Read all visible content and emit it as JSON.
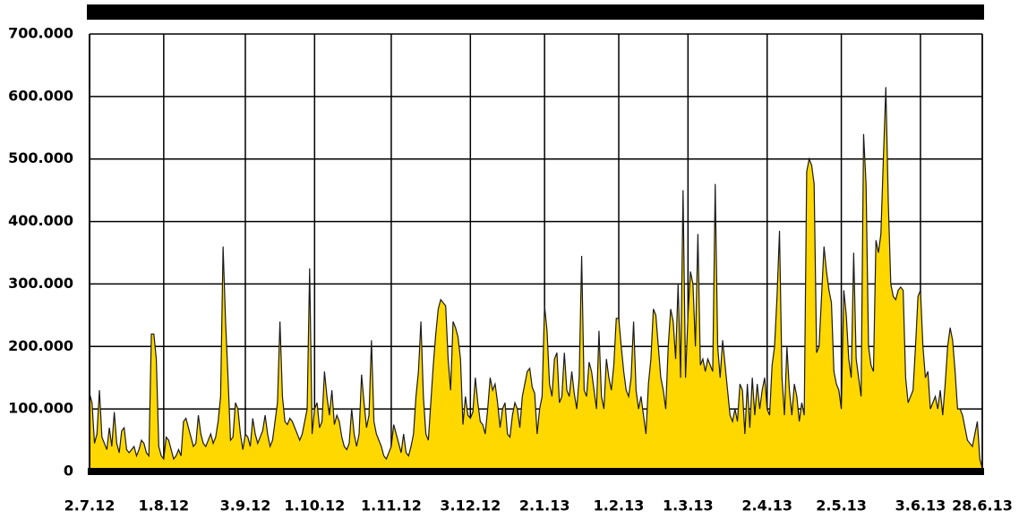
{
  "chart_data": {
    "type": "area",
    "categories": [
      "2.7.12",
      null,
      null,
      null,
      null,
      null,
      null,
      null,
      null,
      null,
      null,
      null,
      null,
      null,
      null,
      null,
      null,
      null,
      null,
      null,
      null,
      null,
      null,
      null,
      null,
      null,
      null,
      null,
      null,
      null,
      "1.8.12",
      null,
      null,
      null,
      null,
      null,
      null,
      null,
      null,
      null,
      null,
      null,
      null,
      null,
      null,
      null,
      null,
      null,
      null,
      null,
      null,
      null,
      null,
      null,
      null,
      null,
      null,
      null,
      null,
      null,
      null,
      null,
      null,
      "3.9.12",
      null,
      null,
      null,
      null,
      null,
      null,
      null,
      null,
      null,
      null,
      null,
      null,
      null,
      null,
      null,
      null,
      null,
      null,
      null,
      null,
      null,
      null,
      null,
      null,
      null,
      null,
      null,
      "1.10.12",
      null,
      null,
      null,
      null,
      null,
      null,
      null,
      null,
      null,
      null,
      null,
      null,
      null,
      null,
      null,
      null,
      null,
      null,
      null,
      null,
      null,
      null,
      null,
      null,
      null,
      null,
      null,
      null,
      null,
      null,
      "1.11.12",
      null,
      null,
      null,
      null,
      null,
      null,
      null,
      null,
      null,
      null,
      null,
      null,
      null,
      null,
      null,
      null,
      null,
      null,
      null,
      null,
      null,
      null,
      null,
      null,
      null,
      null,
      null,
      null,
      null,
      null,
      null,
      "3.12.12",
      null,
      null,
      null,
      null,
      null,
      null,
      null,
      null,
      null,
      null,
      null,
      null,
      null,
      null,
      null,
      null,
      null,
      null,
      null,
      null,
      null,
      null,
      null,
      null,
      null,
      null,
      null,
      null,
      null,
      "2.1.13",
      null,
      null,
      null,
      null,
      null,
      null,
      null,
      null,
      null,
      null,
      null,
      null,
      null,
      null,
      null,
      null,
      null,
      null,
      null,
      null,
      null,
      null,
      null,
      null,
      null,
      null,
      null,
      null,
      null,
      "1.2.13",
      null,
      null,
      null,
      null,
      null,
      null,
      null,
      null,
      null,
      null,
      null,
      null,
      null,
      null,
      null,
      null,
      null,
      null,
      null,
      null,
      null,
      null,
      null,
      null,
      null,
      null,
      null,
      "1.3.13",
      null,
      null,
      null,
      null,
      null,
      null,
      null,
      null,
      null,
      null,
      null,
      null,
      null,
      null,
      null,
      null,
      null,
      null,
      null,
      null,
      null,
      null,
      null,
      null,
      null,
      null,
      null,
      null,
      null,
      null,
      null,
      "2.4.13",
      null,
      null,
      null,
      null,
      null,
      null,
      null,
      null,
      null,
      null,
      null,
      null,
      null,
      null,
      null,
      null,
      null,
      null,
      null,
      null,
      null,
      null,
      null,
      null,
      null,
      null,
      null,
      null,
      null,
      "2.5.13",
      null,
      null,
      null,
      null,
      null,
      null,
      null,
      null,
      null,
      null,
      null,
      null,
      null,
      null,
      null,
      null,
      null,
      null,
      null,
      null,
      null,
      null,
      null,
      null,
      null,
      null,
      null,
      null,
      null,
      null,
      null,
      "3.6.13",
      null,
      null,
      null,
      null,
      null,
      null,
      null,
      null,
      null,
      null,
      null,
      null,
      null,
      null,
      null,
      null,
      null,
      null,
      null,
      null,
      null,
      null,
      null,
      null,
      "28.6.13"
    ],
    "values": [
      125000,
      110000,
      45000,
      60000,
      130000,
      55000,
      45000,
      35000,
      70000,
      40000,
      95000,
      45000,
      30000,
      65000,
      70000,
      35000,
      30000,
      35000,
      40000,
      25000,
      35000,
      50000,
      45000,
      30000,
      25000,
      220000,
      220000,
      180000,
      40000,
      25000,
      20000,
      55000,
      50000,
      35000,
      20000,
      25000,
      35000,
      25000,
      80000,
      85000,
      70000,
      55000,
      40000,
      45000,
      90000,
      60000,
      45000,
      40000,
      50000,
      60000,
      45000,
      55000,
      80000,
      120000,
      360000,
      240000,
      150000,
      50000,
      55000,
      110000,
      100000,
      60000,
      35000,
      60000,
      55000,
      40000,
      85000,
      60000,
      45000,
      55000,
      65000,
      90000,
      60000,
      40000,
      50000,
      80000,
      110000,
      240000,
      120000,
      80000,
      75000,
      85000,
      80000,
      70000,
      60000,
      50000,
      60000,
      80000,
      100000,
      325000,
      60000,
      100000,
      110000,
      70000,
      80000,
      160000,
      120000,
      90000,
      130000,
      75000,
      90000,
      80000,
      55000,
      40000,
      35000,
      45000,
      100000,
      60000,
      40000,
      60000,
      155000,
      110000,
      70000,
      90000,
      210000,
      80000,
      60000,
      50000,
      40000,
      25000,
      20000,
      30000,
      40000,
      75000,
      60000,
      45000,
      30000,
      60000,
      30000,
      25000,
      40000,
      60000,
      120000,
      160000,
      240000,
      120000,
      60000,
      50000,
      110000,
      170000,
      220000,
      260000,
      275000,
      270000,
      265000,
      180000,
      130000,
      240000,
      230000,
      215000,
      180000,
      75000,
      120000,
      90000,
      85000,
      95000,
      150000,
      110000,
      80000,
      75000,
      60000,
      100000,
      150000,
      130000,
      140000,
      110000,
      70000,
      100000,
      110000,
      60000,
      55000,
      90000,
      110000,
      100000,
      70000,
      120000,
      140000,
      160000,
      165000,
      135000,
      125000,
      60000,
      100000,
      120000,
      265000,
      225000,
      140000,
      120000,
      180000,
      190000,
      110000,
      120000,
      190000,
      130000,
      120000,
      160000,
      125000,
      100000,
      150000,
      345000,
      130000,
      120000,
      175000,
      160000,
      130000,
      100000,
      225000,
      120000,
      100000,
      180000,
      150000,
      130000,
      170000,
      245000,
      245000,
      200000,
      160000,
      130000,
      120000,
      150000,
      240000,
      130000,
      100000,
      120000,
      90000,
      60000,
      140000,
      180000,
      260000,
      250000,
      200000,
      150000,
      130000,
      100000,
      200000,
      260000,
      240000,
      180000,
      300000,
      150000,
      450000,
      150000,
      250000,
      320000,
      300000,
      200000,
      380000,
      170000,
      180000,
      160000,
      180000,
      170000,
      160000,
      460000,
      200000,
      150000,
      210000,
      170000,
      130000,
      90000,
      80000,
      100000,
      80000,
      140000,
      130000,
      60000,
      140000,
      70000,
      150000,
      90000,
      140000,
      100000,
      130000,
      150000,
      100000,
      90000,
      170000,
      200000,
      280000,
      385000,
      150000,
      90000,
      200000,
      130000,
      90000,
      140000,
      120000,
      80000,
      110000,
      90000,
      480000,
      500000,
      490000,
      460000,
      190000,
      200000,
      280000,
      360000,
      320000,
      290000,
      270000,
      160000,
      140000,
      130000,
      100000,
      290000,
      250000,
      180000,
      150000,
      350000,
      180000,
      150000,
      120000,
      540000,
      460000,
      200000,
      170000,
      160000,
      370000,
      350000,
      380000,
      500000,
      615000,
      430000,
      300000,
      280000,
      275000,
      290000,
      295000,
      290000,
      150000,
      110000,
      120000,
      130000,
      200000,
      280000,
      290000,
      200000,
      150000,
      160000,
      100000,
      110000,
      120000,
      100000,
      130000,
      90000,
      140000,
      200000,
      230000,
      210000,
      160000,
      100000,
      100000,
      90000,
      70000,
      50000,
      45000,
      40000,
      60000,
      80000,
      20000,
      5000
    ],
    "color": "#ffd800",
    "ylim": [
      0,
      700000
    ],
    "yticks": [
      0,
      {
        "value": 100000,
        "label": "100.000"
      },
      {
        "value": 200000,
        "label": "200.000"
      },
      {
        "value": 300000,
        "label": "300.000"
      },
      {
        "value": 400000,
        "label": "400.000"
      },
      {
        "value": 500000,
        "label": "500.000"
      },
      {
        "value": 600000,
        "label": "600.000"
      },
      {
        "value": 700000,
        "label": "700.000"
      }
    ],
    "grid": true
  }
}
